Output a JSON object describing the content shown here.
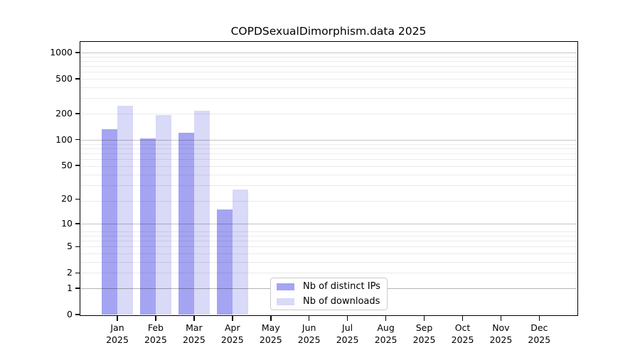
{
  "chart_data": {
    "type": "bar",
    "title": "COPDSexualDimorphism.data 2025",
    "categories": [
      "Jan",
      "Feb",
      "Mar",
      "Apr",
      "May",
      "Jun",
      "Jul",
      "Aug",
      "Sep",
      "Oct",
      "Nov",
      "Dec"
    ],
    "x_year": "2025",
    "series": [
      {
        "name": "Nb of distinct IPs",
        "color": "#a4a4f2",
        "values": [
          132,
          102,
          120,
          15,
          0,
          0,
          0,
          0,
          0,
          0,
          0,
          0
        ]
      },
      {
        "name": "Nb of downloads",
        "color": "#d9d9f8",
        "values": [
          243,
          193,
          216,
          26,
          0,
          0,
          0,
          0,
          0,
          0,
          0,
          0
        ]
      }
    ],
    "y_ticks": [
      0,
      1,
      2,
      5,
      10,
      20,
      50,
      100,
      200,
      500,
      1000
    ],
    "y_scale": "log10(value+1)",
    "ylim": [
      0,
      1300
    ],
    "grid": {
      "major_at": [
        1,
        10,
        100,
        1000
      ],
      "minor": "2-9 per decade",
      "drawn_over_bars": true
    },
    "legend_position": "lower center"
  },
  "colors": {
    "background": "#ffffff",
    "spine": "#000000",
    "text": "#000000",
    "major_grid": "rgba(0,0,0,0.23)",
    "minor_grid": "rgba(0,0,0,0.08)",
    "legend_border": "#cbcbcb"
  }
}
